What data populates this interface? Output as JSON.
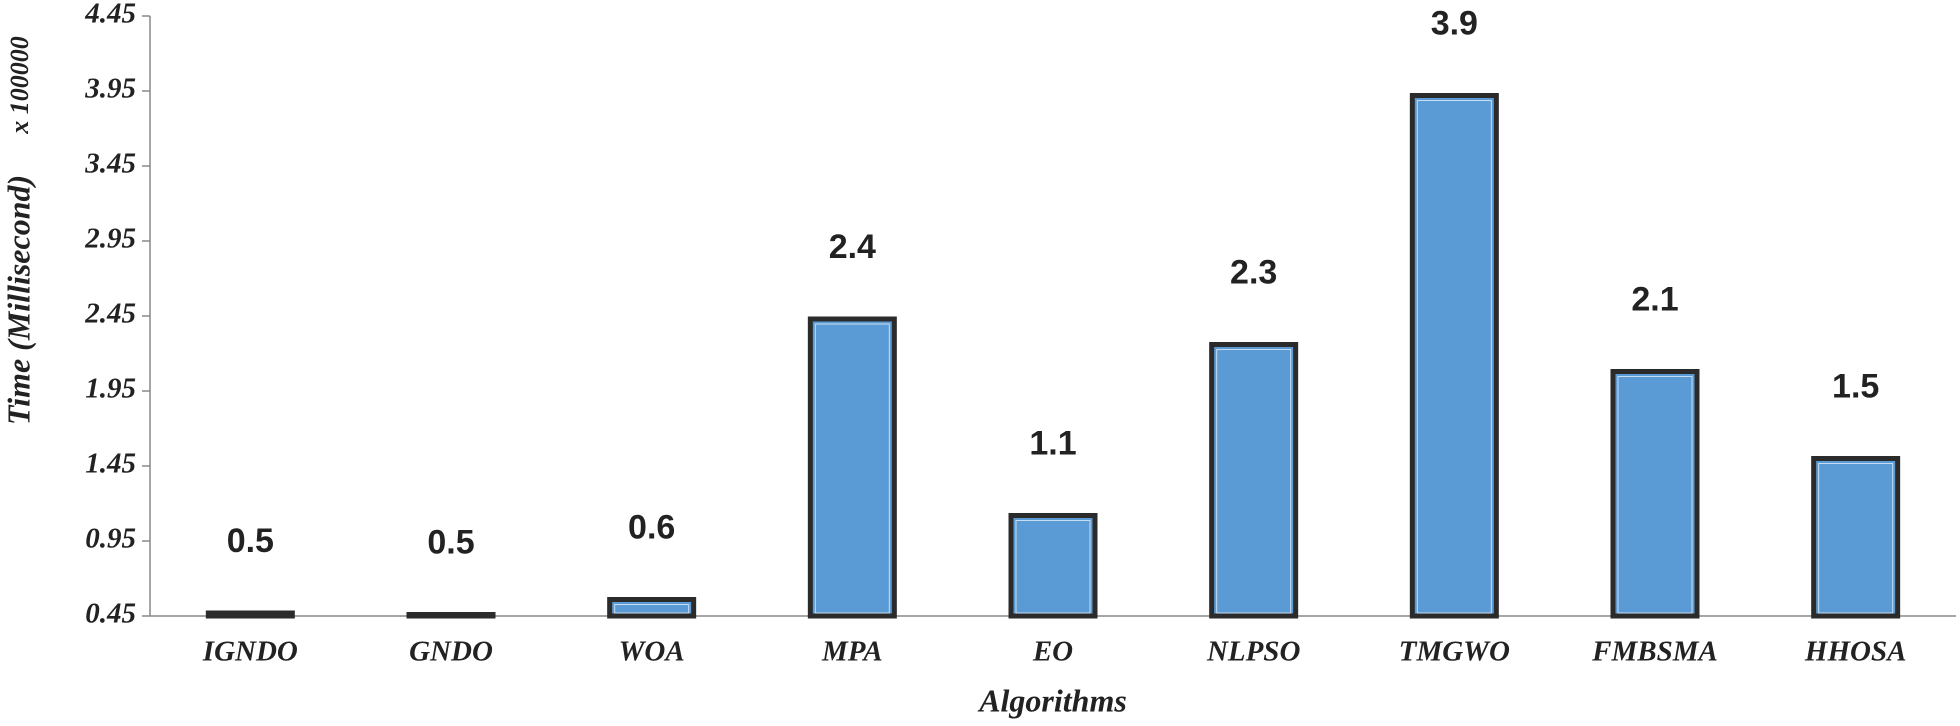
{
  "chart_data": {
    "type": "bar",
    "x_label": "Algorithms",
    "y_label": "Time (Millisecond)",
    "y_scale_label": "x 100000",
    "categories": [
      "IGNDO",
      "GNDO",
      "WOA",
      "MPA",
      "EO",
      "NLPSO",
      "TMGWO",
      "FMBSMA",
      "HHOSA"
    ],
    "values": [
      0.47,
      0.46,
      0.56,
      2.43,
      1.12,
      2.26,
      3.92,
      2.08,
      1.5
    ],
    "value_labels": [
      "0.5",
      "0.5",
      "0.6",
      "2.4",
      "1.1",
      "2.3",
      "3.9",
      "2.1",
      "1.5"
    ],
    "color": "#5b9bd5",
    "ylim": [
      0.45,
      4.45
    ],
    "yticks": [
      0.45,
      0.95,
      1.45,
      1.95,
      2.45,
      2.95,
      3.45,
      3.95,
      4.45
    ],
    "grid": false
  }
}
